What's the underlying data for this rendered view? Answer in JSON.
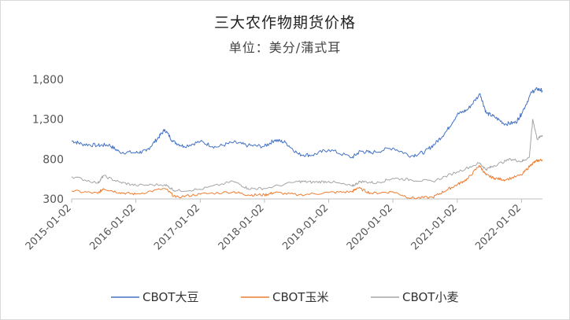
{
  "chart_data": {
    "type": "line",
    "title": "三大农作物期货价格",
    "subtitle": "单位：美分/蒲式耳",
    "xlabel": "",
    "ylabel": "",
    "ylim": [
      300,
      1800
    ],
    "yticks": [
      "1,800",
      "1,300",
      "800",
      "300"
    ],
    "ytick_values": [
      1800,
      1300,
      800,
      300
    ],
    "xticks": [
      "2015-01-02",
      "2016-01-02",
      "2017-01-02",
      "2018-01-02",
      "2019-01-02",
      "2020-01-02",
      "2021-01-02",
      "2022-01-02"
    ],
    "x_start": "2015-01-02",
    "x_end": "2022-05-01",
    "legend_position": "bottom",
    "grid": false,
    "series": [
      {
        "name": "CBOT大豆",
        "color": "#4472c4",
        "x": [
          "2015-01-02",
          "2015-03-01",
          "2015-06-01",
          "2015-08-01",
          "2015-10-01",
          "2016-01-02",
          "2016-03-01",
          "2016-05-01",
          "2016-06-15",
          "2016-08-01",
          "2016-10-01",
          "2017-01-02",
          "2017-04-01",
          "2017-07-10",
          "2017-10-01",
          "2018-01-02",
          "2018-03-01",
          "2018-05-01",
          "2018-07-15",
          "2018-10-01",
          "2019-01-02",
          "2019-05-15",
          "2019-07-01",
          "2019-09-01",
          "2020-01-02",
          "2020-04-15",
          "2020-07-01",
          "2020-09-01",
          "2020-11-01",
          "2021-01-02",
          "2021-03-01",
          "2021-05-12",
          "2021-06-15",
          "2021-08-01",
          "2021-10-01",
          "2021-12-01",
          "2022-01-02",
          "2022-03-01",
          "2022-04-01",
          "2022-05-01"
        ],
        "values": [
          1030,
          990,
          970,
          980,
          890,
          880,
          900,
          1050,
          1170,
          1020,
          960,
          1020,
          950,
          1010,
          970,
          960,
          1040,
          1010,
          860,
          850,
          920,
          820,
          900,
          880,
          940,
          840,
          890,
          1000,
          1150,
          1360,
          1420,
          1620,
          1380,
          1330,
          1240,
          1260,
          1370,
          1640,
          1680,
          1660
        ]
      },
      {
        "name": "CBOT玉米",
        "color": "#ed7d31",
        "x": [
          "2015-01-02",
          "2015-06-01",
          "2015-07-01",
          "2015-10-01",
          "2016-01-02",
          "2016-06-15",
          "2016-08-15",
          "2017-01-02",
          "2017-07-10",
          "2017-10-01",
          "2018-01-02",
          "2018-03-01",
          "2018-07-15",
          "2019-01-02",
          "2019-05-15",
          "2019-06-15",
          "2019-09-01",
          "2020-01-02",
          "2020-04-15",
          "2020-08-15",
          "2020-11-01",
          "2021-01-02",
          "2021-03-01",
          "2021-05-07",
          "2021-06-15",
          "2021-08-01",
          "2021-10-01",
          "2022-01-02",
          "2022-03-01",
          "2022-04-01",
          "2022-05-01"
        ],
        "values": [
          400,
          370,
          430,
          380,
          360,
          430,
          320,
          360,
          390,
          350,
          350,
          380,
          350,
          380,
          390,
          440,
          370,
          390,
          310,
          320,
          410,
          480,
          550,
          720,
          600,
          560,
          540,
          600,
          740,
          780,
          790
        ]
      },
      {
        "name": "CBOT小麦",
        "color": "#a5a5a5",
        "x": [
          "2015-01-02",
          "2015-06-01",
          "2015-07-01",
          "2015-10-01",
          "2016-01-02",
          "2016-06-15",
          "2016-08-15",
          "2017-01-02",
          "2017-07-10",
          "2017-10-01",
          "2018-01-02",
          "2018-07-15",
          "2018-10-01",
          "2019-01-02",
          "2019-05-15",
          "2019-07-01",
          "2019-10-01",
          "2020-01-02",
          "2020-04-15",
          "2020-08-15",
          "2021-01-02",
          "2021-05-07",
          "2021-06-15",
          "2021-08-01",
          "2021-11-01",
          "2022-01-02",
          "2022-02-15",
          "2022-03-07",
          "2022-04-01",
          "2022-05-01"
        ],
        "values": [
          580,
          500,
          590,
          510,
          470,
          480,
          400,
          420,
          520,
          430,
          430,
          520,
          510,
          520,
          460,
          520,
          500,
          560,
          540,
          520,
          640,
          750,
          670,
          720,
          800,
          770,
          820,
          1300,
          1050,
          1100
        ]
      }
    ]
  }
}
